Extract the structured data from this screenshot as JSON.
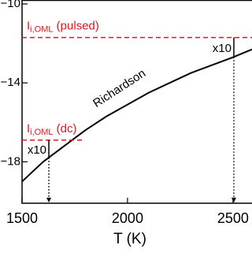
{
  "chart_data": {
    "type": "line",
    "x_label": "T (K)",
    "x": [
      1500,
      1600,
      1700,
      1800,
      1900,
      2000,
      2100,
      2200,
      2300,
      2400,
      2500,
      2590
    ],
    "series": [
      {
        "name": "Richardson",
        "color": "#000000",
        "values": [
          -19.0,
          -18.0,
          -17.2,
          -16.4,
          -15.7,
          -15.1,
          -14.5,
          -14.0,
          -13.5,
          -13.1,
          -12.7,
          -12.3
        ]
      }
    ],
    "xlim": [
      1500,
      2590
    ],
    "ylim": [
      -20.1,
      -9.8
    ],
    "xticks": [
      1500,
      2000,
      2500
    ],
    "yticks": [
      {
        "value": -10,
        "label": "−10"
      },
      {
        "value": -14,
        "label": "−14"
      },
      {
        "value": -18,
        "label": "−18"
      }
    ],
    "hlines": [
      {
        "value": -11.7,
        "xmax": 2590,
        "color": "#e8141c",
        "main": "I",
        "sub": "i,OML",
        "rest": " (pulsed)"
      },
      {
        "value": -16.9,
        "xmax": 1785,
        "color": "#e8141c",
        "main": "I",
        "sub": "i,OML",
        "rest": " (dc)"
      }
    ],
    "markers": [
      {
        "x": 1627,
        "label": "x10",
        "line": 1
      },
      {
        "x": 2504,
        "label": "x10",
        "line": 0
      }
    ]
  }
}
